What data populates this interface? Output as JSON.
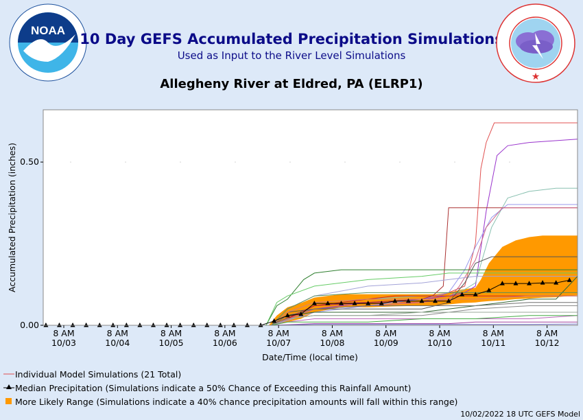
{
  "header": {
    "title": "10 Day GEFS Accumulated Precipitation Simulations",
    "subtitle": "Used as Input to the River Level Simulations",
    "location": "Allegheny River at Eldred, PA (ELRP1)"
  },
  "logos": {
    "noaa": {
      "center_text": "NOAA",
      "ring_text": "NATIONAL OCEANIC AND ATMOSPHERIC ADMINISTRATION · U.S. DEPARTMENT OF COMMERCE"
    },
    "nws": {
      "ring_text": "NATIONAL WEATHER SERVICE"
    }
  },
  "legend": {
    "individual": "Individual Model Simulations (21 Total)",
    "median": "Median Precipitation (Simulations indicate a 50% Chance of Exceeding this Rainfall Amount)",
    "range": "More Likely Range (Simulations indicate a 40% chance precipitation amounts will fall within this range)"
  },
  "footer": "10/02/2022 18 UTC GEFS Model",
  "colors": {
    "band": "#ff9900",
    "median": "#000000",
    "title": "#0b0b88",
    "background": "#dde9f8"
  },
  "chart_data": {
    "type": "line",
    "xlabel": "Date/Time (local time)",
    "ylabel": "Accumulated Precipitation (inches)",
    "ylim": [
      0,
      0.66
    ],
    "yticks": [
      0.0,
      0.5
    ],
    "ytick_labels": [
      "0.00",
      "0.50"
    ],
    "x_unit": "days since 10/02 00:00 local",
    "xlim": [
      0.95,
      10.9
    ],
    "xticks": [
      {
        "x": 1.333,
        "line1": "8 AM",
        "line2": "10/03"
      },
      {
        "x": 2.333,
        "line1": "8 AM",
        "line2": "10/04"
      },
      {
        "x": 3.333,
        "line1": "8 AM",
        "line2": "10/05"
      },
      {
        "x": 4.333,
        "line1": "8 AM",
        "line2": "10/06"
      },
      {
        "x": 5.333,
        "line1": "8 AM",
        "line2": "10/07"
      },
      {
        "x": 6.333,
        "line1": "8 AM",
        "line2": "10/08"
      },
      {
        "x": 7.333,
        "line1": "8 AM",
        "line2": "10/09"
      },
      {
        "x": 8.333,
        "line1": "8 AM",
        "line2": "10/10"
      },
      {
        "x": 9.333,
        "line1": "8 AM",
        "line2": "10/11"
      },
      {
        "x": 10.333,
        "line1": "8 AM",
        "line2": "10/12"
      }
    ],
    "median": {
      "name": "Median Precipitation",
      "x": [
        1.0,
        1.25,
        1.5,
        1.75,
        2.0,
        2.25,
        2.5,
        2.75,
        3.0,
        3.25,
        3.5,
        3.75,
        4.0,
        4.25,
        4.5,
        4.75,
        5.0,
        5.25,
        5.5,
        5.75,
        6.0,
        6.25,
        6.5,
        6.75,
        7.0,
        7.25,
        7.5,
        7.75,
        8.0,
        8.25,
        8.5,
        8.75,
        9.0,
        9.25,
        9.5,
        9.75,
        10.0,
        10.25,
        10.5,
        10.75
      ],
      "y": [
        0,
        0,
        0,
        0,
        0,
        0,
        0,
        0,
        0,
        0,
        0,
        0,
        0,
        0,
        0,
        0,
        0,
        0.013,
        0.03,
        0.034,
        0.067,
        0.067,
        0.067,
        0.067,
        0.067,
        0.067,
        0.074,
        0.074,
        0.074,
        0.074,
        0.074,
        0.094,
        0.094,
        0.107,
        0.128,
        0.128,
        0.128,
        0.13,
        0.13,
        0.138
      ]
    },
    "range_band": {
      "name": "More Likely Range",
      "x": [
        5.15,
        5.3,
        5.5,
        5.75,
        6.0,
        6.5,
        7.0,
        7.5,
        8.0,
        8.25,
        8.5,
        8.75,
        9.0,
        9.1,
        9.25,
        9.5,
        9.75,
        10.0,
        10.25,
        10.5,
        10.75,
        10.9
      ],
      "low": [
        0,
        0.003,
        0.01,
        0.02,
        0.04,
        0.055,
        0.055,
        0.058,
        0.06,
        0.06,
        0.064,
        0.068,
        0.07,
        0.072,
        0.074,
        0.076,
        0.08,
        0.082,
        0.085,
        0.086,
        0.09,
        0.092
      ],
      "high": [
        0,
        0.03,
        0.055,
        0.068,
        0.085,
        0.095,
        0.095,
        0.095,
        0.095,
        0.095,
        0.1,
        0.11,
        0.115,
        0.14,
        0.19,
        0.24,
        0.26,
        0.27,
        0.275,
        0.275,
        0.275,
        0.275
      ]
    },
    "series": [
      {
        "color": "#e05050",
        "x": [
          5.2,
          5.5,
          6.0,
          6.75,
          8.0,
          8.5,
          8.8,
          9.0,
          9.1,
          9.2,
          9.35,
          10.9
        ],
        "y": [
          0,
          0.02,
          0.06,
          0.07,
          0.07,
          0.1,
          0.12,
          0.25,
          0.48,
          0.56,
          0.62,
          0.62
        ]
      },
      {
        "color": "#9933cc",
        "x": [
          5.2,
          6.0,
          7.0,
          8.0,
          8.5,
          8.8,
          9.0,
          9.2,
          9.4,
          9.6,
          10.0,
          10.9
        ],
        "y": [
          0,
          0.05,
          0.07,
          0.08,
          0.09,
          0.1,
          0.12,
          0.35,
          0.52,
          0.55,
          0.56,
          0.57
        ]
      },
      {
        "color": "#88c0b0",
        "x": [
          5.2,
          6.0,
          7.0,
          8.0,
          8.5,
          8.8,
          9.0,
          9.3,
          9.6,
          10.0,
          10.5,
          10.9
        ],
        "y": [
          0,
          0.06,
          0.08,
          0.09,
          0.09,
          0.11,
          0.13,
          0.3,
          0.39,
          0.41,
          0.42,
          0.42
        ]
      },
      {
        "color": "#9999ee",
        "x": [
          5.2,
          6.0,
          7.0,
          8.0,
          8.5,
          8.8,
          9.0,
          9.3,
          9.6,
          10.0,
          10.9
        ],
        "y": [
          0,
          0.04,
          0.06,
          0.08,
          0.1,
          0.17,
          0.24,
          0.33,
          0.37,
          0.37,
          0.37
        ]
      },
      {
        "color": "#aa3030",
        "x": [
          5.2,
          6.0,
          7.0,
          8.0,
          8.2,
          8.4,
          8.5,
          9.0,
          10.0,
          10.9
        ],
        "y": [
          0,
          0.06,
          0.07,
          0.08,
          0.09,
          0.12,
          0.36,
          0.36,
          0.36,
          0.36
        ]
      },
      {
        "color": "#cc6688",
        "x": [
          5.2,
          6.0,
          7.0,
          8.0,
          8.5,
          8.7,
          9.0,
          9.2,
          9.5,
          10.9
        ],
        "y": [
          0,
          0.05,
          0.06,
          0.07,
          0.08,
          0.12,
          0.2,
          0.3,
          0.36,
          0.36
        ]
      },
      {
        "color": "#2f7f2f",
        "x": [
          5.1,
          5.3,
          5.5,
          5.8,
          6.0,
          6.5,
          7.0,
          8.0,
          8.5,
          9.0,
          10.0,
          10.9
        ],
        "y": [
          0,
          0.06,
          0.08,
          0.14,
          0.16,
          0.17,
          0.17,
          0.17,
          0.17,
          0.17,
          0.17,
          0.17
        ]
      },
      {
        "color": "#66cc66",
        "x": [
          5.1,
          5.3,
          5.5,
          6.0,
          7.0,
          8.0,
          8.5,
          9.0,
          10.0,
          10.9
        ],
        "y": [
          0,
          0.07,
          0.09,
          0.12,
          0.14,
          0.15,
          0.16,
          0.16,
          0.16,
          0.16
        ]
      },
      {
        "color": "#a3a3d8",
        "x": [
          5.2,
          5.5,
          6.0,
          7.0,
          8.0,
          8.5,
          9.0,
          9.3,
          10.0,
          10.9
        ],
        "y": [
          0,
          0.05,
          0.09,
          0.12,
          0.13,
          0.14,
          0.15,
          0.15,
          0.15,
          0.15
        ]
      },
      {
        "color": "#555555",
        "x": [
          5.2,
          5.5,
          6.0,
          7.0,
          8.0,
          8.5,
          8.8,
          9.0,
          9.3,
          10.0,
          10.9
        ],
        "y": [
          0,
          0.04,
          0.05,
          0.05,
          0.05,
          0.07,
          0.13,
          0.19,
          0.21,
          0.21,
          0.21
        ]
      },
      {
        "color": "#336633",
        "x": [
          5.2,
          5.5,
          6.0,
          7.0,
          8.0,
          8.5,
          9.0,
          9.5,
          10.0,
          10.5,
          10.9
        ],
        "y": [
          0,
          0.03,
          0.04,
          0.04,
          0.04,
          0.05,
          0.06,
          0.07,
          0.08,
          0.08,
          0.15
        ]
      },
      {
        "color": "#888888",
        "x": [
          5.2,
          5.5,
          6.0,
          7.0,
          8.0,
          8.5,
          9.0,
          10.0,
          10.9
        ],
        "y": [
          0,
          0.02,
          0.03,
          0.03,
          0.03,
          0.04,
          0.05,
          0.06,
          0.06
        ]
      },
      {
        "color": "#bb66bb",
        "x": [
          5.2,
          5.5,
          6.0,
          7.0,
          8.0,
          9.0,
          10.0,
          10.9
        ],
        "y": [
          0,
          0.01,
          0.02,
          0.02,
          0.02,
          0.02,
          0.02,
          0.03
        ]
      },
      {
        "color": "#cc2222",
        "x": [
          5.2,
          5.5,
          6.0,
          7.0,
          7.5,
          8.0,
          8.5,
          9.0,
          10.0,
          10.9
        ],
        "y": [
          0,
          0.02,
          0.06,
          0.08,
          0.09,
          0.09,
          0.09,
          0.09,
          0.09,
          0.09
        ]
      },
      {
        "color": "#99aa99",
        "x": [
          5.2,
          5.5,
          6.0,
          7.0,
          8.0,
          8.5,
          9.0,
          10.0,
          10.9
        ],
        "y": [
          0,
          0.02,
          0.03,
          0.03,
          0.04,
          0.04,
          0.04,
          0.04,
          0.04
        ]
      },
      {
        "color": "#a040a0",
        "x": [
          5.2,
          6.0,
          7.0,
          8.0,
          8.5,
          9.0,
          10.0,
          10.9
        ],
        "y": [
          0,
          0.005,
          0.005,
          0.005,
          0.005,
          0.01,
          0.01,
          0.01
        ]
      },
      {
        "color": "#7777cc",
        "x": [
          5.2,
          6.0,
          7.0,
          8.0,
          9.0,
          10.0,
          10.9
        ],
        "y": [
          0,
          0.003,
          0.003,
          0.003,
          0.003,
          0.003,
          0.004
        ]
      },
      {
        "color": "#44aa44",
        "x": [
          5.2,
          5.5,
          6.0,
          7.0,
          8.0,
          9.0,
          10.0,
          10.9
        ],
        "y": [
          0,
          0.01,
          0.01,
          0.01,
          0.02,
          0.02,
          0.03,
          0.03
        ]
      },
      {
        "color": "#d08080",
        "x": [
          5.2,
          5.5,
          6.0,
          7.0,
          8.0,
          8.5,
          9.0,
          10.0,
          10.9
        ],
        "y": [
          0,
          0.04,
          0.07,
          0.08,
          0.08,
          0.08,
          0.08,
          0.09,
          0.09
        ]
      },
      {
        "color": "#5a8f5a",
        "x": [
          5.2,
          5.5,
          6.0,
          7.0,
          8.0,
          8.5,
          9.0,
          10.0,
          10.9
        ],
        "y": [
          0,
          0.05,
          0.09,
          0.1,
          0.1,
          0.1,
          0.1,
          0.1,
          0.1
        ]
      },
      {
        "color": "#6f6f6f",
        "x": [
          5.2,
          5.5,
          6.0,
          7.0,
          8.0,
          8.5,
          9.0,
          10.0,
          10.9
        ],
        "y": [
          0,
          0.03,
          0.05,
          0.06,
          0.06,
          0.06,
          0.06,
          0.07,
          0.07
        ]
      }
    ]
  }
}
